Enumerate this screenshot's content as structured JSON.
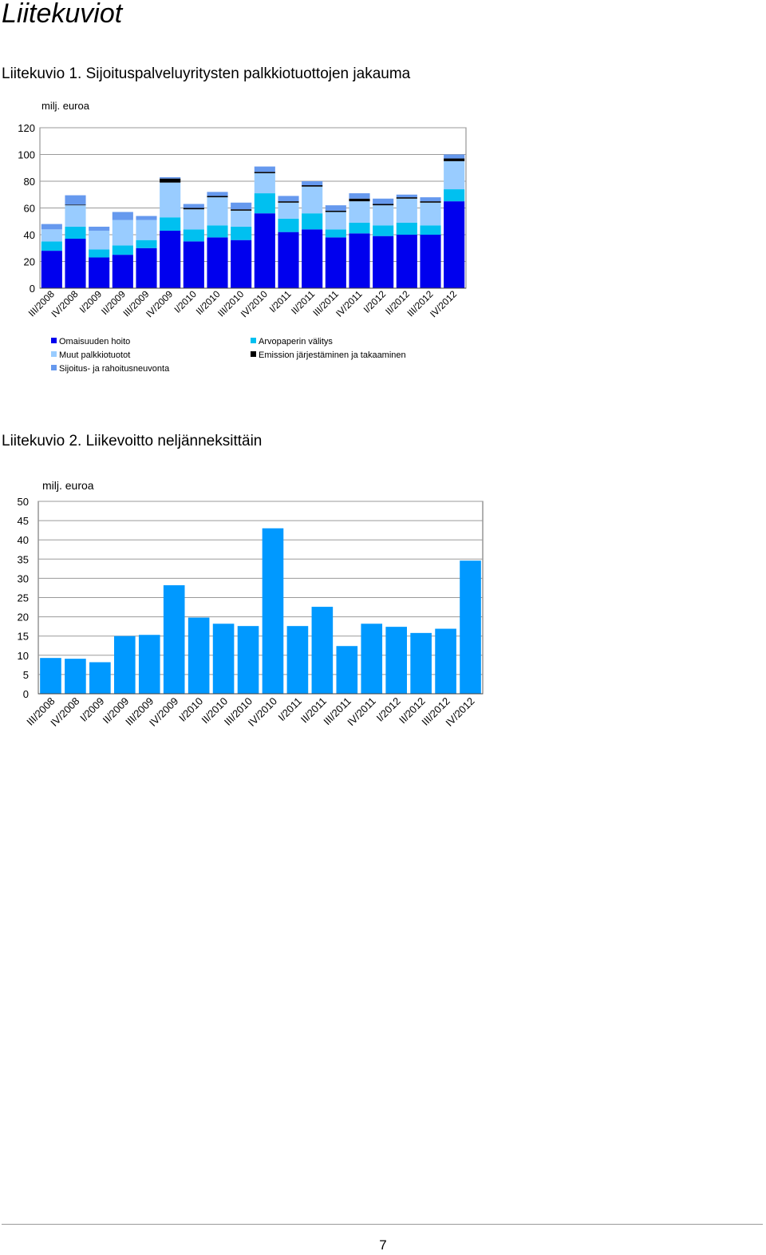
{
  "page": {
    "title": "Liitekuviot",
    "page_number": "7"
  },
  "figures": [
    {
      "caption": "Liitekuvio 1. Sijoituspalveluyritysten palkkiotuottojen jakauma"
    },
    {
      "caption": "Liitekuvio 2. Liikevoitto neljänneksittäin"
    }
  ],
  "chart_data": [
    {
      "type": "bar",
      "stacked": true,
      "title": "",
      "ylabel": "milj. euroa",
      "xlabel": "",
      "ylim": [
        0,
        120
      ],
      "yticks": [
        0,
        20,
        40,
        60,
        80,
        100,
        120
      ],
      "grid": true,
      "legend_position": "bottom",
      "categories": [
        "III/2008",
        "IV/2008",
        "I/2009",
        "II/2009",
        "III/2009",
        "IV/2009",
        "I/2010",
        "II/2010",
        "III/2010",
        "IV/2010",
        "I/2011",
        "II/2011",
        "III/2011",
        "IV/2011",
        "I/2012",
        "II/2012",
        "III/2012",
        "IV/2012"
      ],
      "series": [
        {
          "name": "Omaisuuden hoito",
          "color": "#0000ee",
          "values": [
            28,
            37,
            23,
            25,
            30,
            43,
            35,
            38,
            36,
            56,
            42,
            44,
            38,
            41,
            39,
            40,
            40,
            65
          ]
        },
        {
          "name": "Arvopaperin välitys",
          "color": "#00c0f0",
          "values": [
            7,
            9,
            6,
            7,
            6,
            10,
            9,
            9,
            10,
            15,
            10,
            12,
            6,
            8,
            8,
            9,
            7,
            9
          ]
        },
        {
          "name": "Muut palkkiotuotot",
          "color": "#99ccff",
          "values": [
            9,
            16,
            14,
            19,
            15,
            26,
            15,
            21,
            12,
            15,
            12,
            20,
            13,
            16,
            15,
            18,
            17,
            21
          ]
        },
        {
          "name": "Emission järjestäminen ja takaaminen",
          "color": "#000000",
          "values": [
            0,
            0.5,
            0,
            0,
            0,
            3,
            1,
            1,
            1,
            1,
            1,
            1,
            1,
            2,
            1,
            1,
            1,
            2
          ]
        },
        {
          "name": "Sijoitus- ja rahoitusneuvonta",
          "color": "#6699ee",
          "values": [
            4,
            7,
            3,
            6,
            3,
            1,
            3,
            3,
            5,
            4,
            4,
            3,
            4,
            4,
            4,
            2,
            3,
            3
          ]
        }
      ]
    },
    {
      "type": "bar",
      "title": "",
      "ylabel": "milj. euroa",
      "xlabel": "",
      "ylim": [
        0,
        50
      ],
      "yticks": [
        0,
        5,
        10,
        15,
        20,
        25,
        30,
        35,
        40,
        45,
        50
      ],
      "grid": true,
      "color": "#0099ff",
      "categories": [
        "III/2008",
        "IV/2008",
        "I/2009",
        "II/2009",
        "III/2009",
        "IV/2009",
        "I/2010",
        "II/2010",
        "III/2010",
        "IV/2010",
        "I/2011",
        "II/2011",
        "III/2011",
        "IV/2011",
        "I/2012",
        "II/2012",
        "III/2012",
        "IV/2012"
      ],
      "values": [
        9.3,
        9.1,
        8.2,
        15,
        15.3,
        28.2,
        19.8,
        18.2,
        17.6,
        43,
        17.6,
        22.6,
        12.4,
        18.2,
        17.4,
        15.8,
        16.9,
        34.6
      ]
    }
  ]
}
